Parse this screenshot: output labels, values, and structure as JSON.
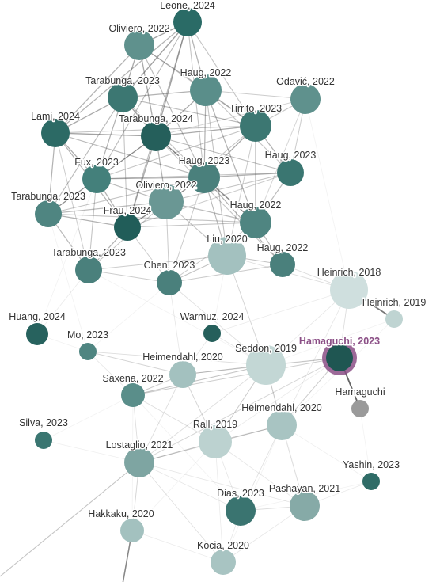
{
  "graph": {
    "selected_node": "hamaguchi-2023",
    "colors": {
      "edge": "#555555",
      "selected_ring": "#8b4f86",
      "label": "#333333",
      "selected_label": "#8b4f86"
    },
    "nodes": [
      {
        "id": "leone-2024",
        "label": "Leone, 2024",
        "color": "#2a6b66"
      },
      {
        "id": "oliviero-2022a",
        "label": "Oliviero, 2022",
        "color": "#5f918d"
      },
      {
        "id": "tarabunga-2023a",
        "label": "Tarabunga, 2023",
        "color": "#3c7772"
      },
      {
        "id": "haug-2022a",
        "label": "Haug, 2022",
        "color": "#5a8e8a"
      },
      {
        "id": "odavic-2022",
        "label": "Odavić, 2022",
        "color": "#5f918d"
      },
      {
        "id": "lami-2024",
        "label": "Lami, 2024",
        "color": "#2c6a65"
      },
      {
        "id": "tarabunga-2024",
        "label": "Tarabunga, 2024",
        "color": "#255f5b"
      },
      {
        "id": "tirrito-2023",
        "label": "Tirrito, 2023",
        "color": "#3c7772"
      },
      {
        "id": "fux-2023",
        "label": "Fux, 2023",
        "color": "#44807b"
      },
      {
        "id": "haug-2023a",
        "label": "Haug, 2023",
        "color": "#3a7671"
      },
      {
        "id": "haug-2023b",
        "label": "Haug, 2023",
        "color": "#4a807c"
      },
      {
        "id": "tarabunga-2023b",
        "label": "Tarabunga, 2023",
        "color": "#4f8581"
      },
      {
        "id": "oliviero-2022b",
        "label": "Oliviero, 2022",
        "color": "#6a9794"
      },
      {
        "id": "frau-2024",
        "label": "Frau, 2024",
        "color": "#215d59"
      },
      {
        "id": "haug-2022b",
        "label": "Haug, 2022",
        "color": "#4f8581"
      },
      {
        "id": "liu-2020",
        "label": "Liu, 2020",
        "color": "#a3c1bf"
      },
      {
        "id": "haug-2022c",
        "label": "Haug, 2022",
        "color": "#4a807c"
      },
      {
        "id": "tarabunga-2023c",
        "label": "Tarabunga, 2023",
        "color": "#4a807c"
      },
      {
        "id": "chen-2023",
        "label": "Chen, 2023",
        "color": "#4a807c"
      },
      {
        "id": "heinrich-2018",
        "label": "Heinrich, 2018",
        "color": "#cfdfde"
      },
      {
        "id": "heinrich-2019",
        "label": "Heinrich, 2019",
        "color": "#bfd4d2"
      },
      {
        "id": "huang-2024",
        "label": "Huang, 2024",
        "color": "#27625e"
      },
      {
        "id": "warmuz-2024",
        "label": "Warmuz, 2024",
        "color": "#255f5b"
      },
      {
        "id": "mo-2023",
        "label": "Mo, 2023",
        "color": "#4f8581"
      },
      {
        "id": "hamaguchi-2023",
        "label": "Hamaguchi, 2023",
        "color": "#1f5652"
      },
      {
        "id": "heimendahl-2020a",
        "label": "Heimendahl, 2020",
        "color": "#a3c1bf"
      },
      {
        "id": "seddon-2019",
        "label": "Seddon, 2019",
        "color": "#c3d7d5"
      },
      {
        "id": "saxena-2022",
        "label": "Saxena, 2022",
        "color": "#5a8e8a"
      },
      {
        "id": "hamaguchi",
        "label": "Hamaguchi",
        "color": "#9a9a9a"
      },
      {
        "id": "heimendahl-2020b",
        "label": "Heimendahl, 2020",
        "color": "#a8c4c2"
      },
      {
        "id": "silva-2023",
        "label": "Silva, 2023",
        "color": "#3a7671"
      },
      {
        "id": "rall-2019",
        "label": "Rall, 2019",
        "color": "#bcd2d0"
      },
      {
        "id": "lostaglio-2021",
        "label": "Lostaglio, 2021",
        "color": "#7ea5a2"
      },
      {
        "id": "yashin-2023",
        "label": "Yashin, 2023",
        "color": "#2f6c67"
      },
      {
        "id": "dias-2023",
        "label": "Dias, 2023",
        "color": "#3a7470"
      },
      {
        "id": "pashayan-2021",
        "label": "Pashayan, 2021",
        "color": "#86aaa7"
      },
      {
        "id": "hakkaku-2020",
        "label": "Hakkaku, 2020",
        "color": "#a3c1bf"
      },
      {
        "id": "kocia-2020",
        "label": "Kocia, 2020",
        "color": "#a8c4c2"
      }
    ],
    "edges": [
      [
        "hamaguchi-2023",
        "hamaguchi",
        0.9
      ],
      [
        "heinrich-2018",
        "heinrich-2019",
        0.8
      ],
      [
        "leone-2024",
        "oliviero-2022a",
        0.55
      ],
      [
        "leone-2024",
        "tarabunga-2023a",
        0.55
      ],
      [
        "leone-2024",
        "tarabunga-2024",
        0.55
      ],
      [
        "leone-2024",
        "haug-2022a",
        0.45
      ],
      [
        "leone-2024",
        "lami-2024",
        0.45
      ],
      [
        "leone-2024",
        "frau-2024",
        0.4
      ],
      [
        "leone-2024",
        "fux-2023",
        0.4
      ],
      [
        "leone-2024",
        "tirrito-2023",
        0.35
      ],
      [
        "leone-2024",
        "haug-2023b",
        0.35
      ],
      [
        "oliviero-2022a",
        "tarabunga-2023a",
        0.5
      ],
      [
        "oliviero-2022a",
        "tarabunga-2024",
        0.5
      ],
      [
        "oliviero-2022a",
        "haug-2022a",
        0.4
      ],
      [
        "oliviero-2022a",
        "lami-2024",
        0.45
      ],
      [
        "oliviero-2022a",
        "haug-2023b",
        0.4
      ],
      [
        "oliviero-2022a",
        "tirrito-2023",
        0.35
      ],
      [
        "tarabunga-2023a",
        "tarabunga-2024",
        0.55
      ],
      [
        "tarabunga-2023a",
        "lami-2024",
        0.5
      ],
      [
        "tarabunga-2023a",
        "fux-2023",
        0.45
      ],
      [
        "tarabunga-2023a",
        "haug-2022a",
        0.45
      ],
      [
        "tarabunga-2023a",
        "tirrito-2023",
        0.4
      ],
      [
        "tarabunga-2023a",
        "tarabunga-2023b",
        0.4
      ],
      [
        "tarabunga-2023a",
        "haug-2023b",
        0.35
      ],
      [
        "tarabunga-2023a",
        "frau-2024",
        0.35
      ],
      [
        "haug-2022a",
        "tarabunga-2024",
        0.5
      ],
      [
        "haug-2022a",
        "tirrito-2023",
        0.45
      ],
      [
        "haug-2022a",
        "haug-2023b",
        0.45
      ],
      [
        "haug-2022a",
        "haug-2022b",
        0.45
      ],
      [
        "haug-2022a",
        "haug-2023a",
        0.35
      ],
      [
        "haug-2022a",
        "odavic-2022",
        0.3
      ],
      [
        "haug-2022a",
        "liu-2020",
        0.35
      ],
      [
        "odavic-2022",
        "tirrito-2023",
        0.35
      ],
      [
        "odavic-2022",
        "haug-2023a",
        0.3
      ],
      [
        "odavic-2022",
        "haug-2022b",
        0.25
      ],
      [
        "odavic-2022",
        "tarabunga-2024",
        0.25
      ],
      [
        "lami-2024",
        "tarabunga-2024",
        0.55
      ],
      [
        "lami-2024",
        "fux-2023",
        0.5
      ],
      [
        "lami-2024",
        "tarabunga-2023b",
        0.45
      ],
      [
        "lami-2024",
        "frau-2024",
        0.45
      ],
      [
        "lami-2024",
        "haug-2023b",
        0.4
      ],
      [
        "lami-2024",
        "tirrito-2023",
        0.35
      ],
      [
        "lami-2024",
        "tarabunga-2023c",
        0.3
      ],
      [
        "tarabunga-2024",
        "fux-2023",
        0.5
      ],
      [
        "tarabunga-2024",
        "haug-2023b",
        0.55
      ],
      [
        "tarabunga-2024",
        "tirrito-2023",
        0.5
      ],
      [
        "tarabunga-2024",
        "frau-2024",
        0.5
      ],
      [
        "tarabunga-2024",
        "oliviero-2022b",
        0.45
      ],
      [
        "tarabunga-2024",
        "haug-2022b",
        0.45
      ],
      [
        "tarabunga-2024",
        "haug-2023a",
        0.4
      ],
      [
        "tarabunga-2024",
        "tarabunga-2023b",
        0.4
      ],
      [
        "tarabunga-2024",
        "haug-2022c",
        0.35
      ],
      [
        "tirrito-2023",
        "haug-2023b",
        0.5
      ],
      [
        "tirrito-2023",
        "haug-2023a",
        0.45
      ],
      [
        "tirrito-2023",
        "haug-2022b",
        0.45
      ],
      [
        "tirrito-2023",
        "fux-2023",
        0.35
      ],
      [
        "tirrito-2023",
        "oliviero-2022b",
        0.35
      ],
      [
        "tirrito-2023",
        "liu-2020",
        0.3
      ],
      [
        "fux-2023",
        "haug-2023b",
        0.45
      ],
      [
        "fux-2023",
        "tarabunga-2023b",
        0.45
      ],
      [
        "fux-2023",
        "frau-2024",
        0.45
      ],
      [
        "fux-2023",
        "oliviero-2022b",
        0.4
      ],
      [
        "fux-2023",
        "haug-2023a",
        0.35
      ],
      [
        "fux-2023",
        "tarabunga-2023c",
        0.35
      ],
      [
        "haug-2023a",
        "haug-2023b",
        0.45
      ],
      [
        "haug-2023a",
        "haug-2022b",
        0.4
      ],
      [
        "haug-2023a",
        "oliviero-2022b",
        0.35
      ],
      [
        "haug-2023a",
        "frau-2024",
        0.3
      ],
      [
        "haug-2023b",
        "haug-2022b",
        0.5
      ],
      [
        "haug-2023b",
        "oliviero-2022b",
        0.45
      ],
      [
        "haug-2023b",
        "frau-2024",
        0.45
      ],
      [
        "haug-2023b",
        "haug-2022c",
        0.45
      ],
      [
        "haug-2023b",
        "liu-2020",
        0.4
      ],
      [
        "haug-2023b",
        "tarabunga-2023b",
        0.35
      ],
      [
        "haug-2023b",
        "chen-2023",
        0.3
      ],
      [
        "tarabunga-2023b",
        "frau-2024",
        0.45
      ],
      [
        "tarabunga-2023b",
        "oliviero-2022b",
        0.4
      ],
      [
        "tarabunga-2023b",
        "tarabunga-2023c",
        0.4
      ],
      [
        "tarabunga-2023b",
        "haug-2022b",
        0.35
      ],
      [
        "oliviero-2022b",
        "frau-2024",
        0.45
      ],
      [
        "oliviero-2022b",
        "haug-2022b",
        0.4
      ],
      [
        "oliviero-2022b",
        "liu-2020",
        0.35
      ],
      [
        "oliviero-2022b",
        "tarabunga-2023c",
        0.35
      ],
      [
        "oliviero-2022b",
        "chen-2023",
        0.3
      ],
      [
        "frau-2024",
        "tarabunga-2023c",
        0.45
      ],
      [
        "frau-2024",
        "haug-2022b",
        0.35
      ],
      [
        "frau-2024",
        "chen-2023",
        0.3
      ],
      [
        "haug-2022b",
        "liu-2020",
        0.4
      ],
      [
        "haug-2022b",
        "haug-2022c",
        0.4
      ],
      [
        "haug-2022b",
        "chen-2023",
        0.3
      ],
      [
        "liu-2020",
        "haug-2022c",
        0.35
      ],
      [
        "liu-2020",
        "chen-2023",
        0.35
      ],
      [
        "liu-2020",
        "tarabunga-2023c",
        0.3
      ],
      [
        "liu-2020",
        "heinrich-2018",
        0.2
      ],
      [
        "haug-2022c",
        "chen-2023",
        0.3
      ],
      [
        "haug-2022c",
        "heinrich-2018",
        0.2
      ],
      [
        "tarabunga-2023c",
        "chen-2023",
        0.3
      ],
      [
        "chen-2023",
        "seddon-2019",
        0.18
      ],
      [
        "chen-2023",
        "heimendahl-2020a",
        0.15
      ],
      [
        "heinrich-2018",
        "seddon-2019",
        0.15
      ],
      [
        "heinrich-2018",
        "hamaguchi-2023",
        0.2
      ],
      [
        "heinrich-2018",
        "heimendahl-2020b",
        0.15
      ],
      [
        "heinrich-2018",
        "warmuz-2024",
        0.12
      ],
      [
        "hamaguchi-2023",
        "seddon-2019",
        0.25
      ],
      [
        "hamaguchi-2023",
        "heimendahl-2020b",
        0.3
      ],
      [
        "hamaguchi-2023",
        "rall-2019",
        0.12
      ],
      [
        "hamaguchi-2023",
        "saxena-2022",
        0.3
      ],
      [
        "hamaguchi-2023",
        "lostaglio-2021",
        0.25
      ],
      [
        "hamaguchi-2023",
        "heimendahl-2020a",
        0.2
      ],
      [
        "seddon-2019",
        "heimendahl-2020a",
        0.35
      ],
      [
        "seddon-2019",
        "saxena-2022",
        0.35
      ],
      [
        "seddon-2019",
        "heimendahl-2020b",
        0.3
      ],
      [
        "seddon-2019",
        "rall-2019",
        0.3
      ],
      [
        "seddon-2019",
        "liu-2020",
        0.25
      ],
      [
        "seddon-2019",
        "mo-2023",
        0.2
      ],
      [
        "seddon-2019",
        "lostaglio-2021",
        0.2
      ],
      [
        "seddon-2019",
        "warmuz-2024",
        0.15
      ],
      [
        "heimendahl-2020a",
        "saxena-2022",
        0.3
      ],
      [
        "heimendahl-2020a",
        "rall-2019",
        0.25
      ],
      [
        "heimendahl-2020a",
        "mo-2023",
        0.25
      ],
      [
        "heimendahl-2020a",
        "lostaglio-2021",
        0.2
      ],
      [
        "heimendahl-2020b",
        "rall-2019",
        0.3
      ],
      [
        "heimendahl-2020b",
        "lostaglio-2021",
        0.25
      ],
      [
        "heimendahl-2020b",
        "dias-2023",
        0.18
      ],
      [
        "heimendahl-2020b",
        "pashayan-2021",
        0.18
      ],
      [
        "rall-2019",
        "lostaglio-2021",
        0.3
      ],
      [
        "rall-2019",
        "saxena-2022",
        0.2
      ],
      [
        "rall-2019",
        "pashayan-2021",
        0.15
      ],
      [
        "rall-2019",
        "dias-2023",
        0.15
      ],
      [
        "rall-2019",
        "kocia-2020",
        0.12
      ],
      [
        "lostaglio-2021",
        "hakkaku-2020",
        0.25
      ],
      [
        "lostaglio-2021",
        "saxena-2022",
        0.2
      ],
      [
        "lostaglio-2021",
        "dias-2023",
        0.15
      ],
      [
        "lostaglio-2021",
        "pashayan-2021",
        0.15
      ],
      [
        "lostaglio-2021",
        "kocia-2020",
        0.12
      ],
      [
        "lostaglio-2021",
        "offscreen-left",
        0.35
      ],
      [
        "hakkaku-2020",
        "offscreen-bottom",
        0.7
      ],
      [
        "hakkaku-2020",
        "kocia-2020",
        0.12
      ],
      [
        "pashayan-2021",
        "dias-2023",
        0.2
      ],
      [
        "pashayan-2021",
        "kocia-2020",
        0.15
      ],
      [
        "pashayan-2021",
        "yashin-2023",
        0.12
      ],
      [
        "dias-2023",
        "kocia-2020",
        0.15
      ],
      [
        "mo-2023",
        "saxena-2022",
        0.15
      ],
      [
        "huang-2024",
        "tarabunga-2023c",
        0.12
      ],
      [
        "warmuz-2024",
        "heimendahl-2020a",
        0.15
      ],
      [
        "silva-2023",
        "lostaglio-2021",
        0.1
      ],
      [
        "yashin-2023",
        "heimendahl-2020b",
        0.1
      ]
    ]
  }
}
